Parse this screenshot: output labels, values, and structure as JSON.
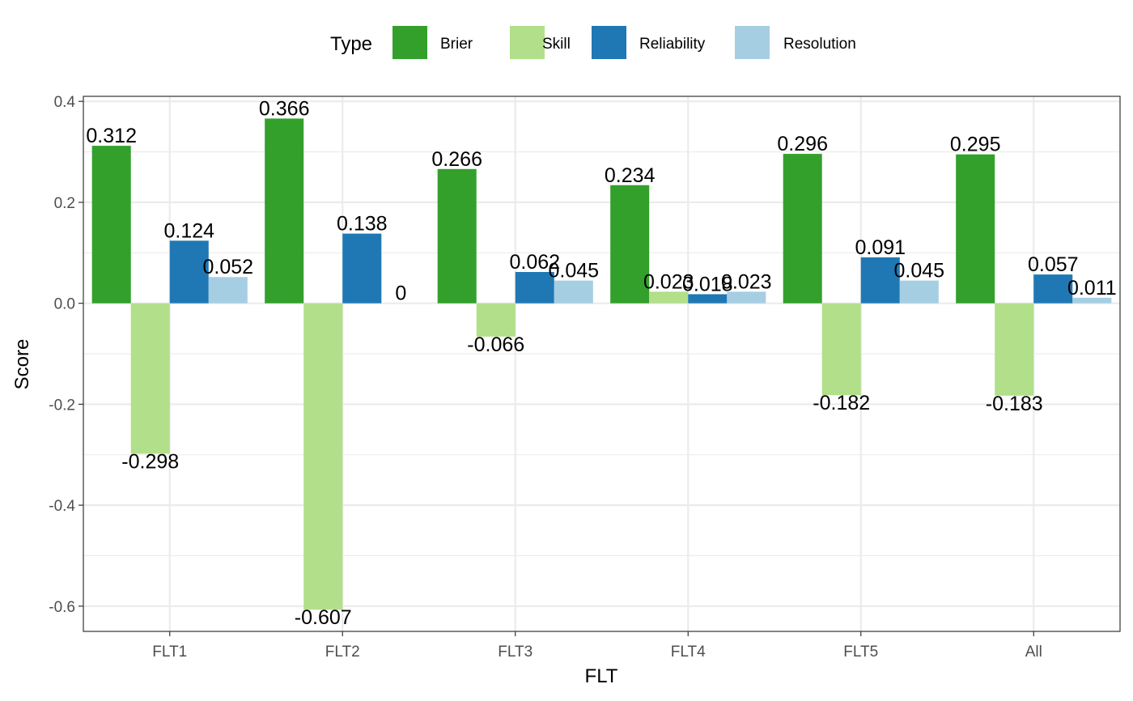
{
  "chart_data": {
    "type": "bar",
    "categories": [
      "FLT1",
      "FLT2",
      "FLT3",
      "FLT4",
      "FLT5",
      "All"
    ],
    "series": [
      {
        "name": "Brier",
        "color": "#33a02c",
        "values": [
          0.312,
          0.366,
          0.266,
          0.234,
          0.296,
          0.295
        ],
        "labels": [
          "0.312",
          "0.366",
          "0.266",
          "0.234",
          "0.296",
          "0.295"
        ]
      },
      {
        "name": "Skill",
        "color": "#b2df8a",
        "values": [
          -0.298,
          -0.607,
          -0.066,
          0.023,
          -0.182,
          -0.183
        ],
        "labels": [
          "-0.298",
          "-0.607",
          "-0.066",
          "0.023",
          "-0.182",
          "-0.183"
        ]
      },
      {
        "name": "Reliability",
        "color": "#1f78b4",
        "values": [
          0.124,
          0.138,
          0.062,
          0.018,
          0.091,
          0.057
        ],
        "labels": [
          "0.124",
          "0.138",
          "0.062",
          "0.018",
          "0.091",
          "0.057"
        ]
      },
      {
        "name": "Resolution",
        "color": "#a6cee3",
        "values": [
          0.052,
          0.0,
          0.045,
          0.023,
          0.045,
          0.011
        ],
        "labels": [
          "0.052",
          "0",
          "0.045",
          "0.023",
          "0.045",
          "0.011"
        ]
      }
    ],
    "xlabel": "FLT",
    "ylabel": "Score",
    "ylim": [
      -0.65,
      0.41
    ],
    "yticks": [
      -0.6,
      -0.4,
      -0.2,
      0.0,
      0.2,
      0.4
    ],
    "ytick_labels": [
      "-0.6",
      "-0.4",
      "-0.2",
      "0.0",
      "0.2",
      "0.4"
    ],
    "grid": true,
    "legend": {
      "title": "Type",
      "position": "top"
    }
  }
}
